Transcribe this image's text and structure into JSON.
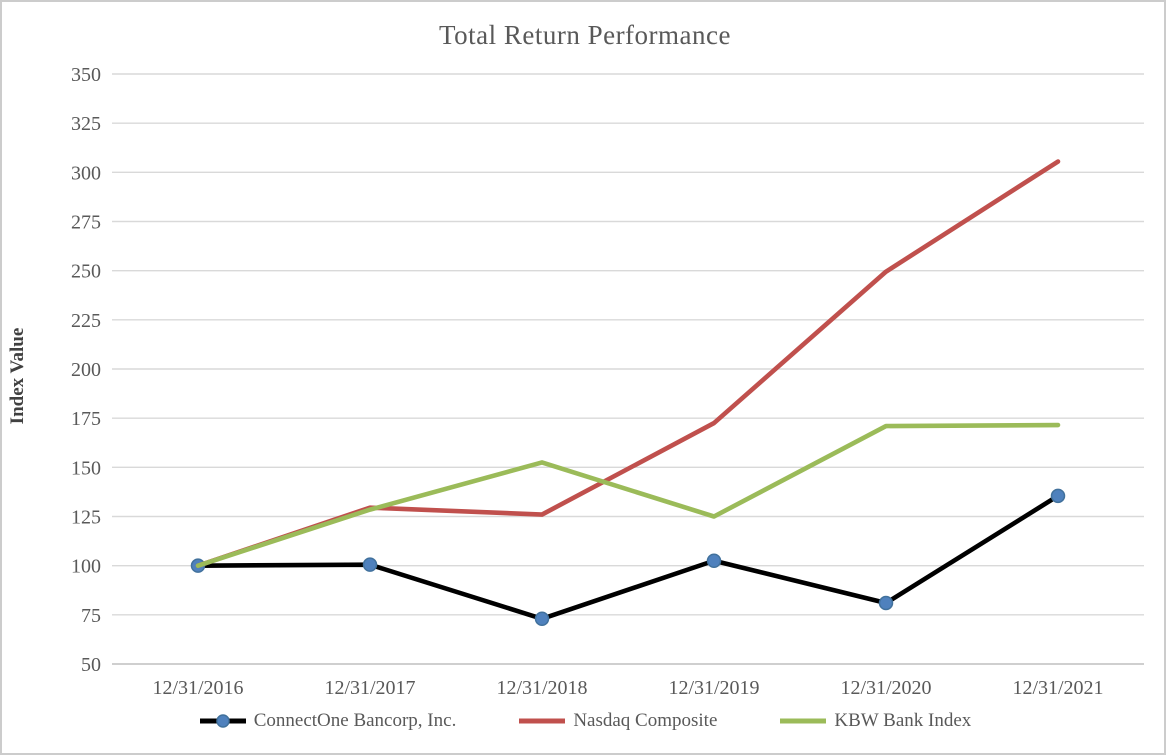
{
  "window": {
    "background": "#ffffff",
    "border_color": "#cccccc"
  },
  "chart_data": {
    "type": "line",
    "title": "Total Return Performance",
    "xlabel": "",
    "ylabel": "Index Value",
    "categories": [
      "12/31/2016",
      "12/31/2017",
      "12/31/2018",
      "12/31/2019",
      "12/31/2020",
      "12/31/2021"
    ],
    "yticks": [
      350,
      325,
      300,
      275,
      250,
      225,
      200,
      175,
      150,
      125,
      100,
      75,
      50
    ],
    "ylim": [
      50,
      350
    ],
    "grid": "horizontal-only",
    "gridline_color": "#d9d9d9",
    "axis_line_color": "#bfbfbf",
    "text_color": "#595959",
    "legend_position": "bottom",
    "series": [
      {
        "name": "ConnectOne Bancorp, Inc.",
        "color": "#000000",
        "marker": true,
        "marker_color": "#4f81bd",
        "marker_edge_color": "#41719c",
        "values": [
          100,
          100.5,
          73,
          102.5,
          81,
          135.5
        ]
      },
      {
        "name": "Nasdaq Composite",
        "color": "#c0504d",
        "marker": false,
        "values": [
          100,
          129.5,
          126,
          172.5,
          249.5,
          305.5
        ]
      },
      {
        "name": "KBW Bank Index",
        "color": "#9bbb59",
        "marker": false,
        "values": [
          100,
          128.5,
          152.5,
          125,
          171,
          171.5
        ]
      }
    ]
  }
}
